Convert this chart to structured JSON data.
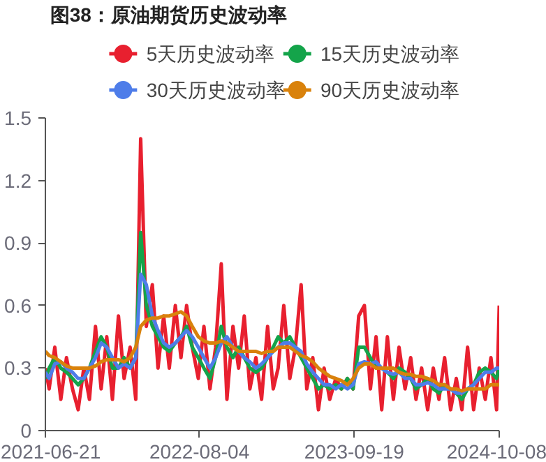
{
  "chart_data": {
    "type": "line",
    "title": "图38：原油期货历史波动率",
    "legend": "top",
    "grid": false,
    "marker": "none",
    "line_style": "solid",
    "x": [
      "2021-06-21",
      "2021-07-01",
      "2021-07-16",
      "2021-08-01",
      "2021-08-16",
      "2021-09-01",
      "2021-09-16",
      "2021-10-01",
      "2021-10-16",
      "2021-11-01",
      "2021-11-16",
      "2021-12-01",
      "2021-12-16",
      "2022-01-01",
      "2022-01-16",
      "2022-02-01",
      "2022-02-16",
      "2022-03-01",
      "2022-03-16",
      "2022-04-01",
      "2022-04-16",
      "2022-05-01",
      "2022-05-16",
      "2022-06-01",
      "2022-06-16",
      "2022-07-01",
      "2022-07-16",
      "2022-08-01",
      "2022-08-16",
      "2022-09-01",
      "2022-09-16",
      "2022-10-01",
      "2022-10-16",
      "2022-11-01",
      "2022-11-16",
      "2022-12-01",
      "2022-12-16",
      "2023-01-01",
      "2023-01-16",
      "2023-02-01",
      "2023-02-16",
      "2023-03-01",
      "2023-03-16",
      "2023-04-01",
      "2023-04-16",
      "2023-05-01",
      "2023-05-16",
      "2023-06-01",
      "2023-06-16",
      "2023-07-01",
      "2023-07-16",
      "2023-08-01",
      "2023-08-16",
      "2023-09-01",
      "2023-09-16",
      "2023-10-01",
      "2023-10-16",
      "2023-11-01",
      "2023-11-16",
      "2023-12-01",
      "2023-12-16",
      "2024-01-01",
      "2024-01-16",
      "2024-02-01",
      "2024-02-16",
      "2024-03-01",
      "2024-03-16",
      "2024-04-01",
      "2024-04-16",
      "2024-05-01",
      "2024-05-16",
      "2024-06-01",
      "2024-06-16",
      "2024-07-01",
      "2024-07-16",
      "2024-08-01",
      "2024-08-16",
      "2024-09-01",
      "2024-09-16",
      "2024-10-01",
      "2024-10-08"
    ],
    "xlim": [
      "2021-06-21",
      "2024-10-08"
    ],
    "xticks": [
      {
        "value": "2021-06-21",
        "label": "2021-06-21"
      },
      {
        "value": "2022-08-04",
        "label": "2022-08-04"
      },
      {
        "value": "2023-09-19",
        "label": "2023-09-19"
      },
      {
        "value": "2024-10-08",
        "label": "2024-10-08"
      }
    ],
    "ylim": [
      0,
      1.5
    ],
    "yticks": [
      0,
      0.3,
      0.6,
      0.9,
      1.2,
      1.5
    ],
    "series": [
      {
        "name": "5天历史波动率",
        "color": "#e8202f",
        "values": [
          0.3,
          0.2,
          0.4,
          0.15,
          0.35,
          0.2,
          0.1,
          0.3,
          0.15,
          0.5,
          0.2,
          0.45,
          0.15,
          0.55,
          0.25,
          0.4,
          0.15,
          1.4,
          0.5,
          0.7,
          0.3,
          0.55,
          0.3,
          0.6,
          0.35,
          0.6,
          0.4,
          0.25,
          0.5,
          0.2,
          0.4,
          0.8,
          0.15,
          0.5,
          0.3,
          0.55,
          0.2,
          0.35,
          0.15,
          0.5,
          0.2,
          0.3,
          0.6,
          0.25,
          0.4,
          0.7,
          0.2,
          0.35,
          0.1,
          0.3,
          0.15,
          0.25,
          0.2,
          0.25,
          0.2,
          0.55,
          0.6,
          0.2,
          0.45,
          0.1,
          0.45,
          0.15,
          0.4,
          0.2,
          0.35,
          0.15,
          0.3,
          0.1,
          0.3,
          0.15,
          0.35,
          0.1,
          0.25,
          0.1,
          0.4,
          0.1,
          0.3,
          0.15,
          0.35,
          0.1,
          0.6
        ]
      },
      {
        "name": "15天历史波动率",
        "color": "#14a44a",
        "values": [
          0.25,
          0.3,
          0.35,
          0.3,
          0.28,
          0.25,
          0.22,
          0.25,
          0.3,
          0.38,
          0.45,
          0.4,
          0.3,
          0.3,
          0.35,
          0.3,
          0.35,
          0.95,
          0.6,
          0.5,
          0.45,
          0.4,
          0.38,
          0.42,
          0.45,
          0.5,
          0.4,
          0.35,
          0.3,
          0.25,
          0.35,
          0.5,
          0.4,
          0.35,
          0.4,
          0.35,
          0.3,
          0.28,
          0.3,
          0.35,
          0.4,
          0.45,
          0.42,
          0.45,
          0.4,
          0.35,
          0.3,
          0.25,
          0.2,
          0.22,
          0.2,
          0.22,
          0.2,
          0.25,
          0.2,
          0.4,
          0.4,
          0.35,
          0.3,
          0.3,
          0.28,
          0.25,
          0.3,
          0.28,
          0.25,
          0.2,
          0.22,
          0.25,
          0.2,
          0.18,
          0.22,
          0.2,
          0.18,
          0.15,
          0.2,
          0.22,
          0.28,
          0.3,
          0.28,
          0.25,
          0.3
        ]
      },
      {
        "name": "30天历史波动率",
        "color": "#4e7de9",
        "values": [
          0.28,
          0.25,
          0.32,
          0.33,
          0.3,
          0.28,
          0.25,
          0.25,
          0.3,
          0.35,
          0.42,
          0.4,
          0.35,
          0.3,
          0.32,
          0.3,
          0.35,
          0.75,
          0.7,
          0.55,
          0.48,
          0.42,
          0.4,
          0.42,
          0.45,
          0.48,
          0.45,
          0.4,
          0.35,
          0.3,
          0.35,
          0.42,
          0.45,
          0.4,
          0.38,
          0.35,
          0.33,
          0.3,
          0.32,
          0.35,
          0.38,
          0.4,
          0.42,
          0.42,
          0.4,
          0.38,
          0.32,
          0.28,
          0.25,
          0.22,
          0.22,
          0.2,
          0.22,
          0.2,
          0.22,
          0.32,
          0.33,
          0.32,
          0.33,
          0.3,
          0.28,
          0.27,
          0.28,
          0.25,
          0.25,
          0.22,
          0.22,
          0.23,
          0.22,
          0.2,
          0.2,
          0.2,
          0.18,
          0.18,
          0.2,
          0.22,
          0.25,
          0.28,
          0.28,
          0.3,
          0.3
        ]
      },
      {
        "name": "90天历史波动率",
        "color": "#d9820c",
        "values": [
          0.38,
          0.36,
          0.35,
          0.33,
          0.31,
          0.3,
          0.3,
          0.3,
          0.3,
          0.31,
          0.33,
          0.34,
          0.34,
          0.34,
          0.33,
          0.35,
          0.4,
          0.5,
          0.53,
          0.54,
          0.54,
          0.55,
          0.55,
          0.56,
          0.57,
          0.55,
          0.5,
          0.45,
          0.43,
          0.42,
          0.42,
          0.43,
          0.42,
          0.4,
          0.38,
          0.38,
          0.38,
          0.38,
          0.37,
          0.38,
          0.38,
          0.4,
          0.4,
          0.4,
          0.38,
          0.36,
          0.35,
          0.33,
          0.3,
          0.28,
          0.26,
          0.25,
          0.24,
          0.22,
          0.25,
          0.3,
          0.32,
          0.32,
          0.3,
          0.3,
          0.3,
          0.3,
          0.28,
          0.27,
          0.27,
          0.26,
          0.26,
          0.25,
          0.24,
          0.22,
          0.22,
          0.2,
          0.2,
          0.19,
          0.2,
          0.2,
          0.2,
          0.2,
          0.22,
          0.22,
          0.22
        ]
      }
    ]
  }
}
